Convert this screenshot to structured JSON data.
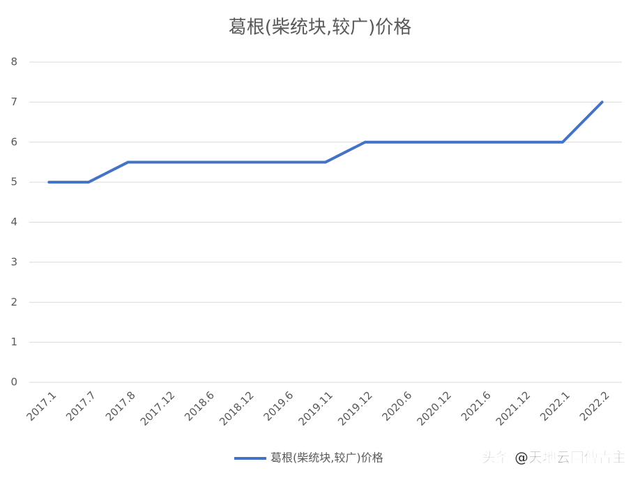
{
  "chart_data": {
    "type": "line",
    "title": "葛根(柴统块,较广)价格",
    "categories": [
      "2017.1",
      "2017.7",
      "2017.8",
      "2017.12",
      "2018.6",
      "2018.12",
      "2019.6",
      "2019.11",
      "2019.12",
      "2020.6",
      "2020.12",
      "2021.6",
      "2021.12",
      "2022.1",
      "2022.2"
    ],
    "series": [
      {
        "name": "葛根(柴统块,较广)价格",
        "color": "#4472c4",
        "values": [
          5,
          5,
          5.5,
          5.5,
          5.5,
          5.5,
          5.5,
          5.5,
          6,
          6,
          6,
          6,
          6,
          6,
          7
        ]
      }
    ],
    "ylim": [
      0,
      8
    ],
    "yticks": [
      0,
      1,
      2,
      3,
      4,
      5,
      6,
      7,
      8
    ],
    "grid": true,
    "legend": "bottom"
  },
  "watermark": "头条 @天地云图傅青主"
}
